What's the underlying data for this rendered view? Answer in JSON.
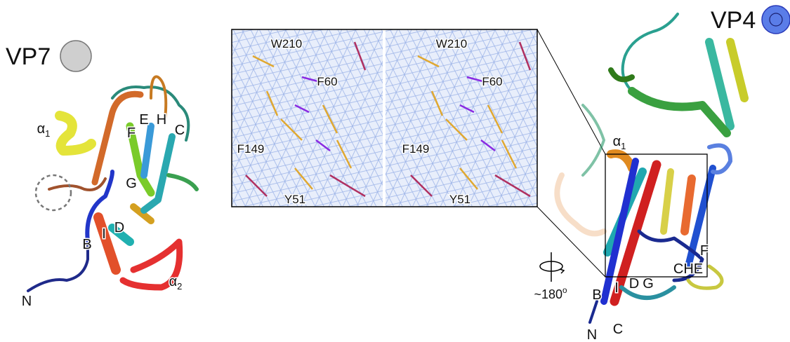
{
  "left": {
    "title": "VP7",
    "labels": [
      {
        "text": "α",
        "sub": "1"
      },
      "E",
      "F",
      "H",
      "C",
      "G",
      "D",
      "B",
      "I",
      "N",
      {
        "text": "α",
        "sub": "2"
      }
    ]
  },
  "density": {
    "labels": [
      "W210",
      "F60",
      "F149",
      "Y51"
    ]
  },
  "right": {
    "title": "VP4",
    "labels": [
      {
        "text": "α",
        "sub": "1"
      },
      "F",
      "CHE",
      "D",
      "G",
      "B",
      "I",
      "N",
      "C"
    ],
    "rotation": {
      "text": "~180",
      "sup": "o"
    }
  }
}
